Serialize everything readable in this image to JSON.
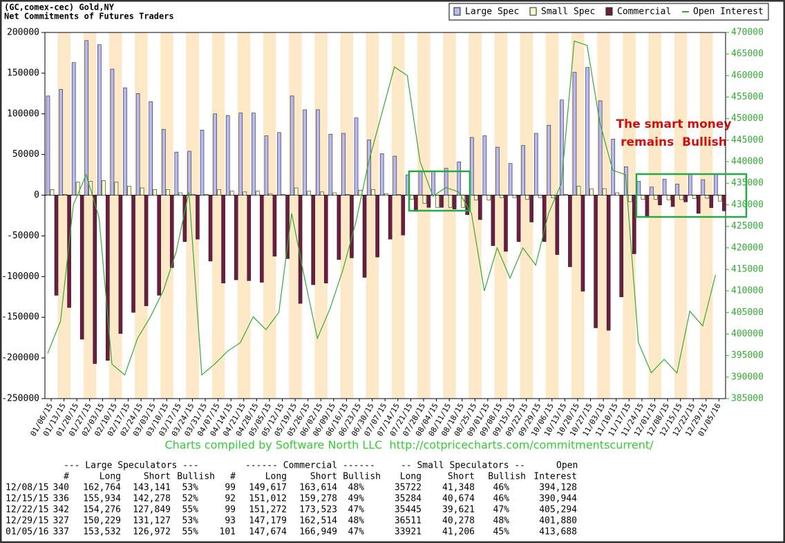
{
  "chart_data": {
    "type": "bar",
    "title": "(GC,comex-cec) Gold,NY",
    "subtitle": "Net Commitments of Futures Traders",
    "annotation_lines": [
      "The smart money",
      "remains  Bullish"
    ],
    "footer": "Charts compiled by Software North LLC  http://cotpricecharts.com/commitmentscurrent/",
    "categories": [
      "01/06/15",
      "01/13/15",
      "01/20/15",
      "01/27/15",
      "02/03/15",
      "02/10/15",
      "02/17/15",
      "02/24/15",
      "03/03/15",
      "03/10/15",
      "03/17/15",
      "03/24/15",
      "03/31/15",
      "04/07/15",
      "04/14/15",
      "04/21/15",
      "04/28/15",
      "05/05/15",
      "05/12/15",
      "05/19/15",
      "05/26/15",
      "06/02/15",
      "06/09/15",
      "06/16/15",
      "06/23/15",
      "06/30/15",
      "07/07/15",
      "07/14/15",
      "07/21/15",
      "07/28/15",
      "08/04/15",
      "08/11/15",
      "08/18/15",
      "08/25/15",
      "09/01/15",
      "09/08/15",
      "09/15/15",
      "09/22/15",
      "09/29/15",
      "10/06/15",
      "10/13/15",
      "10/20/15",
      "10/27/15",
      "11/03/15",
      "11/10/15",
      "11/17/15",
      "11/24/15",
      "12/01/15",
      "12/08/15",
      "12/15/15",
      "12/22/15",
      "12/29/15",
      "01/05/16"
    ],
    "series": [
      {
        "name": "Large Spec",
        "color": "#b9b9f2",
        "values": [
          122000,
          130000,
          163000,
          190000,
          185000,
          155000,
          132000,
          125000,
          115000,
          81000,
          53000,
          54000,
          80000,
          100000,
          98000,
          101000,
          101000,
          73000,
          77000,
          122000,
          105000,
          105000,
          75000,
          76000,
          95000,
          68000,
          51000,
          48000,
          25000,
          30000,
          30000,
          33000,
          41000,
          71000,
          73000,
          59000,
          39000,
          61000,
          76000,
          86000,
          117000,
          151000,
          157000,
          116000,
          69000,
          35000,
          17000,
          10000,
          19623,
          13656,
          26427,
          19102,
          26560
        ]
      },
      {
        "name": "Small Spec",
        "color": "#ffffcc",
        "values": [
          7000,
          1000,
          16000,
          17000,
          18000,
          16000,
          11000,
          9000,
          7000,
          7000,
          3000,
          1000,
          1000,
          7000,
          5000,
          4000,
          5000,
          2000,
          1000,
          9000,
          5000,
          4000,
          3000,
          1000,
          6000,
          7000,
          2000,
          1000,
          -5000,
          -10000,
          -15000,
          -15000,
          -15000,
          -6000,
          -6000,
          -3000,
          -3000,
          -5000,
          -3000,
          -3000,
          1000,
          11000,
          8000,
          8000,
          3000,
          -8000,
          -5000,
          -5000,
          -5626,
          -5390,
          -4176,
          -3767,
          -7285
        ]
      },
      {
        "name": "Commercial",
        "color": "#6e1c42",
        "values": [
          -123000,
          -138000,
          -177000,
          -207000,
          -203000,
          -170000,
          -144000,
          -136000,
          -123000,
          -89000,
          -57000,
          -54000,
          -81000,
          -108000,
          -104000,
          -105000,
          -107000,
          -75000,
          -78000,
          -133000,
          -110000,
          -108000,
          -79000,
          -77000,
          -101000,
          -76000,
          -54000,
          -49000,
          -20000,
          -15000,
          -15000,
          -17000,
          -24000,
          -30000,
          -62000,
          -69000,
          -57000,
          -33000,
          -57000,
          -73000,
          -88000,
          -118000,
          -163000,
          -166000,
          -125000,
          -72000,
          -27000,
          -12000,
          -13997,
          -8266,
          -22251,
          -15335,
          -19275
        ]
      },
      {
        "name": "Open Interest",
        "color": "#33aa33",
        "axis": "y2",
        "values": [
          395500,
          403000,
          430000,
          437000,
          427000,
          393000,
          390500,
          399000,
          404000,
          410000,
          419000,
          433000,
          390500,
          393000,
          396000,
          398000,
          404000,
          401000,
          405000,
          428000,
          413000,
          399000,
          406000,
          415000,
          426000,
          440000,
          451000,
          462000,
          460000,
          440000,
          432000,
          434000,
          433000,
          428000,
          410000,
          420000,
          413000,
          420000,
          416000,
          428000,
          435000,
          468000,
          467000,
          449000,
          438000,
          437000,
          398000,
          391000,
          394128,
          390944,
          405294,
          401880,
          413688
        ]
      }
    ],
    "ylim": [
      -250000,
      200000
    ],
    "yticks": [
      -250000,
      -200000,
      -150000,
      -100000,
      -50000,
      0,
      50000,
      100000,
      150000,
      200000
    ],
    "y2lim": [
      385000,
      470000
    ],
    "y2ticks": [
      385000,
      390000,
      395000,
      400000,
      405000,
      410000,
      415000,
      420000,
      425000,
      430000,
      435000,
      440000,
      445000,
      450000,
      455000,
      460000,
      465000,
      470000
    ],
    "legend": "top-right"
  },
  "table": {
    "header": [
      [
        "--- Large Speculators ---",
        "------ Commercial ------",
        "-- Small Speculators --",
        "Open"
      ],
      [
        "#",
        "Long",
        "Short",
        "Bullish",
        "#",
        "Long",
        "Short",
        "Bullish",
        "Long",
        "Short",
        "Bullish",
        "Interest"
      ]
    ],
    "rows": [
      [
        "12/08/15",
        "340",
        "162,764",
        "143,141",
        "53%",
        "99",
        "149,617",
        "163,614",
        "48%",
        "35722",
        "41,348",
        "46%",
        "394,128"
      ],
      [
        "12/15/15",
        "336",
        "155,934",
        "142,278",
        "52%",
        "92",
        "151,012",
        "159,278",
        "49%",
        "35284",
        "40,674",
        "46%",
        "390,944"
      ],
      [
        "12/22/15",
        "342",
        "154,276",
        "127,849",
        "55%",
        "99",
        "151,272",
        "173,523",
        "47%",
        "35445",
        "39,621",
        "47%",
        "405,294"
      ],
      [
        "12/29/15",
        "327",
        "150,229",
        "131,127",
        "53%",
        "93",
        "147,179",
        "162,514",
        "48%",
        "36511",
        "40,278",
        "48%",
        "401,880"
      ],
      [
        "01/05/16",
        "337",
        "153,532",
        "126,972",
        "55%",
        "101",
        "147,674",
        "166,949",
        "47%",
        "33921",
        "41,206",
        "45%",
        "413,688"
      ]
    ]
  }
}
